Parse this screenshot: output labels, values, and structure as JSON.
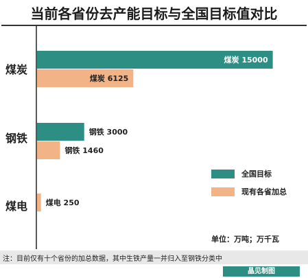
{
  "title": "当前各省份去产能目标与全国目标值对比",
  "unit_text": "单位：万吨；万千瓦",
  "note_text": "注：目前仅有十个省份的加总数据，其中生铁产量一并归入至钢铁分类中",
  "credit_text": "晶见制图",
  "colors": {
    "national": "#2d8f83",
    "provincial": "#f2b387"
  },
  "chart_data": {
    "type": "bar",
    "orientation": "horizontal",
    "categories": [
      "煤炭",
      "钢铁",
      "煤电"
    ],
    "series": [
      {
        "name": "全国目标",
        "values": [
          15000,
          3000,
          null
        ],
        "labels": [
          "煤炭 15000",
          "钢铁 3000",
          ""
        ]
      },
      {
        "name": "现有各省加总",
        "values": [
          6125,
          1460,
          250
        ],
        "labels": [
          "煤炭 6125",
          "钢铁 1460",
          "煤电 250"
        ]
      }
    ],
    "xlim": [
      0,
      16500
    ],
    "grid": false,
    "legend": "right"
  }
}
